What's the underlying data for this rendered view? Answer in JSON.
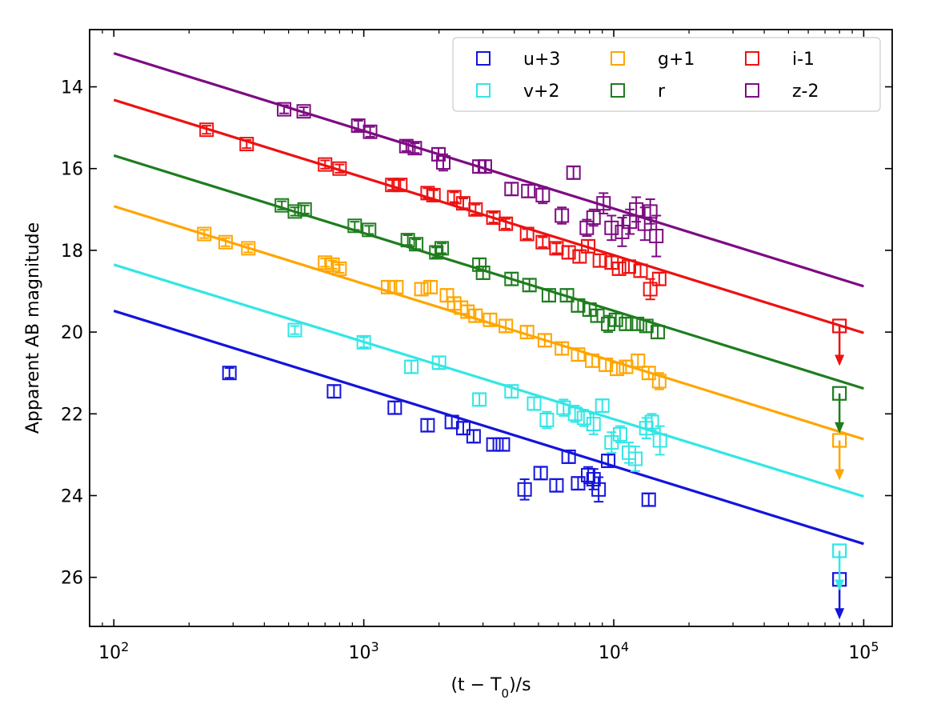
{
  "chart_data": {
    "type": "scatter",
    "xlabel": "(t − T0)/s",
    "xlabel_main": "(t − T",
    "xlabel_sub": "0",
    "xlabel_tail": ")/s",
    "ylabel": "Apparent AB magnitude",
    "xscale": "log",
    "xlim": [
      80,
      130000
    ],
    "ylim": [
      27.2,
      12.6
    ],
    "y_inverted": true,
    "x_ticks": [
      {
        "value": 100,
        "base": "10",
        "exp": "2"
      },
      {
        "value": 1000,
        "base": "10",
        "exp": "3"
      },
      {
        "value": 10000,
        "base": "10",
        "exp": "4"
      },
      {
        "value": 100000,
        "base": "10",
        "exp": "5"
      }
    ],
    "y_ticks": [
      {
        "value": 14,
        "label": "14"
      },
      {
        "value": 16,
        "label": "16"
      },
      {
        "value": 18,
        "label": "18"
      },
      {
        "value": 20,
        "label": "20"
      },
      {
        "value": 22,
        "label": "22"
      },
      {
        "value": 24,
        "label": "24"
      },
      {
        "value": 26,
        "label": "26"
      }
    ],
    "legend_position": "top-right",
    "legend_columns": 3,
    "fit_x_range": [
      100,
      100000
    ],
    "series": [
      {
        "name": "u+3",
        "color": "#1414dc",
        "fit": [
          19.48,
          25.18
        ],
        "points": [
          [
            290,
            21.0,
            0.12
          ],
          [
            760,
            21.45,
            0.15
          ],
          [
            1330,
            21.85,
            0.15
          ],
          [
            1800,
            22.28,
            0.15
          ],
          [
            2250,
            22.2,
            0.15
          ],
          [
            2500,
            22.35,
            0.15
          ],
          [
            2750,
            22.55,
            0.15
          ],
          [
            3300,
            22.75,
            0.15
          ],
          [
            3600,
            22.75,
            0.15
          ],
          [
            4400,
            23.85,
            0.25
          ],
          [
            5100,
            23.45,
            0.15
          ],
          [
            5900,
            23.75,
            0.15
          ],
          [
            6600,
            23.05,
            0.15
          ],
          [
            7200,
            23.7,
            0.15
          ],
          [
            7900,
            23.5,
            0.2
          ],
          [
            8300,
            23.6,
            0.25
          ],
          [
            8700,
            23.85,
            0.3
          ],
          [
            9500,
            23.15,
            0.15
          ],
          [
            13800,
            24.1,
            0.15
          ]
        ],
        "upper_limits": [
          [
            80000,
            26.05
          ]
        ]
      },
      {
        "name": "v+2",
        "color": "#33e6e6",
        "fit": [
          18.35,
          24.02
        ],
        "points": [
          [
            530,
            19.95,
            0.1
          ],
          [
            1000,
            20.25,
            0.12
          ],
          [
            1550,
            20.85,
            0.15
          ],
          [
            2000,
            20.75,
            0.15
          ],
          [
            2900,
            21.65,
            0.15
          ],
          [
            3900,
            21.45,
            0.15
          ],
          [
            4800,
            21.75,
            0.15
          ],
          [
            5400,
            22.15,
            0.2
          ],
          [
            6300,
            21.85,
            0.2
          ],
          [
            7000,
            22.0,
            0.2
          ],
          [
            7600,
            22.1,
            0.2
          ],
          [
            8300,
            22.25,
            0.25
          ],
          [
            9000,
            21.8,
            0.15
          ],
          [
            9800,
            22.7,
            0.25
          ],
          [
            10600,
            22.5,
            0.2
          ],
          [
            11500,
            22.95,
            0.25
          ],
          [
            12200,
            23.1,
            0.3
          ],
          [
            13500,
            22.35,
            0.25
          ],
          [
            14200,
            22.2,
            0.2
          ],
          [
            15300,
            22.65,
            0.35
          ]
        ],
        "upper_limits": [
          [
            80000,
            25.35
          ]
        ]
      },
      {
        "name": "g+1",
        "color": "#ffa500",
        "fit": [
          16.92,
          22.62
        ],
        "points": [
          [
            230,
            17.6,
            0.1
          ],
          [
            280,
            17.8,
            0.1
          ],
          [
            345,
            17.95,
            0.1
          ],
          [
            700,
            18.3,
            0.1
          ],
          [
            750,
            18.35,
            0.1
          ],
          [
            800,
            18.45,
            0.1
          ],
          [
            1250,
            18.9,
            0.15
          ],
          [
            1350,
            18.9,
            0.15
          ],
          [
            1700,
            18.95,
            0.15
          ],
          [
            1850,
            18.9,
            0.15
          ],
          [
            2150,
            19.1,
            0.15
          ],
          [
            2300,
            19.3,
            0.15
          ],
          [
            2450,
            19.4,
            0.15
          ],
          [
            2600,
            19.5,
            0.15
          ],
          [
            2800,
            19.6,
            0.15
          ],
          [
            3200,
            19.7,
            0.15
          ],
          [
            3700,
            19.85,
            0.15
          ],
          [
            4500,
            20.0,
            0.15
          ],
          [
            5300,
            20.2,
            0.15
          ],
          [
            6200,
            20.4,
            0.15
          ],
          [
            7200,
            20.55,
            0.15
          ],
          [
            8200,
            20.7,
            0.15
          ],
          [
            9300,
            20.8,
            0.15
          ],
          [
            10300,
            20.9,
            0.15
          ],
          [
            11200,
            20.85,
            0.15
          ],
          [
            12500,
            20.7,
            0.15
          ],
          [
            13800,
            21.0,
            0.15
          ],
          [
            15200,
            21.2,
            0.2
          ]
        ],
        "upper_limits": [
          [
            80000,
            22.65
          ]
        ]
      },
      {
        "name": "r",
        "color": "#1e7d1e",
        "fit": [
          15.68,
          21.38
        ],
        "points": [
          [
            470,
            16.9,
            0.1
          ],
          [
            530,
            17.05,
            0.1
          ],
          [
            580,
            17.0,
            0.1
          ],
          [
            920,
            17.4,
            0.1
          ],
          [
            1050,
            17.5,
            0.1
          ],
          [
            1500,
            17.75,
            0.12
          ],
          [
            1620,
            17.85,
            0.12
          ],
          [
            1950,
            18.05,
            0.12
          ],
          [
            2050,
            17.95,
            0.12
          ],
          [
            2900,
            18.35,
            0.15
          ],
          [
            3000,
            18.55,
            0.15
          ],
          [
            3900,
            18.7,
            0.15
          ],
          [
            4600,
            18.85,
            0.15
          ],
          [
            5500,
            19.1,
            0.15
          ],
          [
            6500,
            19.1,
            0.15
          ],
          [
            7200,
            19.35,
            0.15
          ],
          [
            8000,
            19.45,
            0.15
          ],
          [
            8600,
            19.6,
            0.15
          ],
          [
            9500,
            19.8,
            0.2
          ],
          [
            10200,
            19.7,
            0.15
          ],
          [
            11200,
            19.8,
            0.15
          ],
          [
            12400,
            19.8,
            0.15
          ],
          [
            13500,
            19.85,
            0.15
          ],
          [
            15000,
            20.0,
            0.15
          ]
        ],
        "upper_limits": [
          [
            80000,
            21.5
          ]
        ]
      },
      {
        "name": "i-1",
        "color": "#ee1111",
        "fit": [
          14.32,
          20.02
        ],
        "points": [
          [
            235,
            15.05,
            0.1
          ],
          [
            340,
            15.4,
            0.1
          ],
          [
            700,
            15.9,
            0.1
          ],
          [
            800,
            16.0,
            0.1
          ],
          [
            1300,
            16.4,
            0.12
          ],
          [
            1400,
            16.4,
            0.12
          ],
          [
            1800,
            16.6,
            0.12
          ],
          [
            1900,
            16.65,
            0.12
          ],
          [
            2300,
            16.7,
            0.12
          ],
          [
            2500,
            16.85,
            0.12
          ],
          [
            2800,
            17.0,
            0.12
          ],
          [
            3300,
            17.2,
            0.12
          ],
          [
            3700,
            17.35,
            0.12
          ],
          [
            4500,
            17.6,
            0.12
          ],
          [
            5200,
            17.8,
            0.12
          ],
          [
            5900,
            17.95,
            0.12
          ],
          [
            6600,
            18.05,
            0.15
          ],
          [
            7300,
            18.15,
            0.15
          ],
          [
            7900,
            17.9,
            0.15
          ],
          [
            8800,
            18.25,
            0.15
          ],
          [
            9800,
            18.3,
            0.15
          ],
          [
            10500,
            18.45,
            0.15
          ],
          [
            11500,
            18.4,
            0.15
          ],
          [
            12800,
            18.5,
            0.15
          ],
          [
            14000,
            18.95,
            0.25
          ],
          [
            15200,
            18.7,
            0.15
          ]
        ],
        "upper_limits": [
          [
            80000,
            19.85
          ]
        ]
      },
      {
        "name": "z-2",
        "color": "#7d0c82",
        "fit": [
          13.18,
          18.88
        ],
        "points": [
          [
            480,
            14.55,
            0.1
          ],
          [
            575,
            14.6,
            0.1
          ],
          [
            950,
            14.95,
            0.12
          ],
          [
            1060,
            15.1,
            0.12
          ],
          [
            1480,
            15.45,
            0.12
          ],
          [
            1600,
            15.5,
            0.12
          ],
          [
            1990,
            15.65,
            0.15
          ],
          [
            2080,
            15.85,
            0.2
          ],
          [
            2900,
            15.95,
            0.15
          ],
          [
            3050,
            15.95,
            0.15
          ],
          [
            3900,
            16.5,
            0.15
          ],
          [
            4550,
            16.55,
            0.15
          ],
          [
            5200,
            16.65,
            0.2
          ],
          [
            6200,
            17.15,
            0.2
          ],
          [
            6900,
            16.1,
            0.15
          ],
          [
            7800,
            17.45,
            0.2
          ],
          [
            8300,
            17.2,
            0.2
          ],
          [
            9100,
            16.85,
            0.25
          ],
          [
            9800,
            17.45,
            0.3
          ],
          [
            10800,
            17.55,
            0.35
          ],
          [
            11600,
            17.3,
            0.3
          ],
          [
            12300,
            17.0,
            0.3
          ],
          [
            13300,
            17.35,
            0.4
          ],
          [
            14000,
            17.05,
            0.3
          ],
          [
            14800,
            17.65,
            0.5
          ]
        ],
        "upper_limits": []
      }
    ]
  }
}
